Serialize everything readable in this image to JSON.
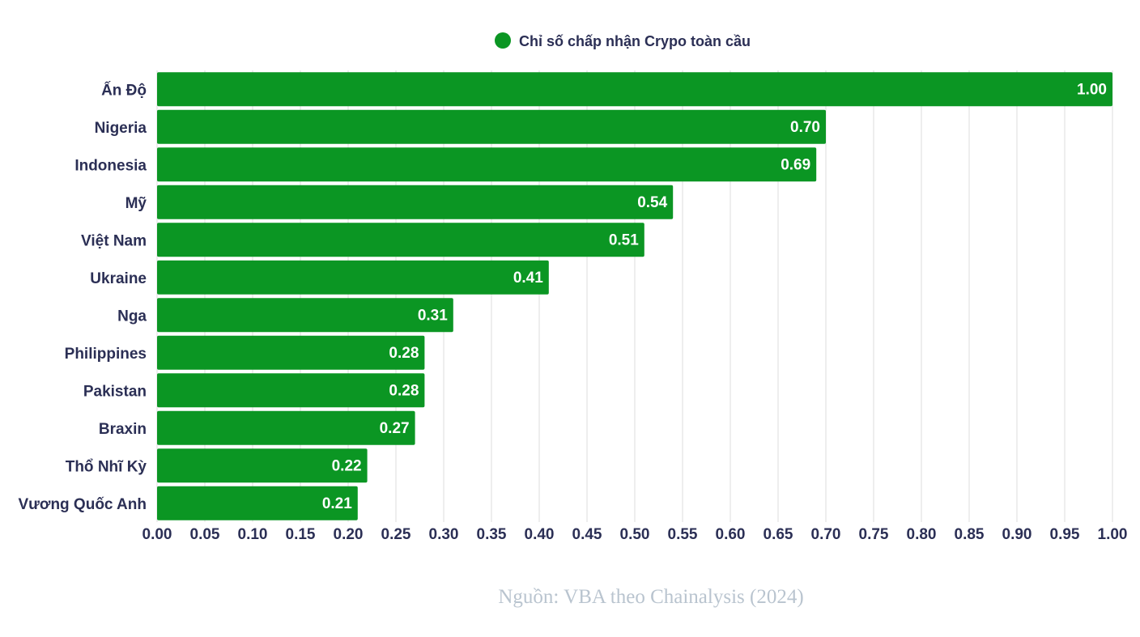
{
  "colors": {
    "bar": "#0b9623",
    "grid": "#dcdcdc",
    "text": "#2b2f55",
    "source": "#b9c4cf"
  },
  "chart_data": {
    "type": "bar",
    "orientation": "horizontal",
    "title": "",
    "legend": {
      "label": "Chỉ số chấp nhận Crypo toàn cầu",
      "position": "top"
    },
    "categories": [
      "Ấn Độ",
      "Nigeria",
      "Indonesia",
      "Mỹ",
      "Việt Nam",
      "Ukraine",
      "Nga",
      "Philippines",
      "Pakistan",
      "Braxin",
      "Thổ Nhĩ Kỳ",
      "Vương Quốc Anh"
    ],
    "series": [
      {
        "name": "Chỉ số chấp nhận Crypo toàn cầu",
        "values": [
          1.0,
          0.7,
          0.69,
          0.54,
          0.51,
          0.41,
          0.31,
          0.28,
          0.28,
          0.27,
          0.22,
          0.21
        ],
        "labels": [
          "1.00",
          "0.70",
          "0.69",
          "0.54",
          "0.51",
          "0.41",
          "0.31",
          "0.28",
          "0.28",
          "0.27",
          "0.22",
          "0.21"
        ]
      }
    ],
    "xlim": [
      0,
      1
    ],
    "xticks": [
      "0.00",
      "0.05",
      "0.10",
      "0.15",
      "0.20",
      "0.25",
      "0.30",
      "0.35",
      "0.40",
      "0.45",
      "0.50",
      "0.55",
      "0.60",
      "0.65",
      "0.70",
      "0.75",
      "0.80",
      "0.85",
      "0.90",
      "0.95",
      "1.00"
    ],
    "grid": true,
    "xlabel": "",
    "ylabel": ""
  },
  "source": {
    "text": "Nguồn: VBA theo Chainalysis (2024)"
  }
}
